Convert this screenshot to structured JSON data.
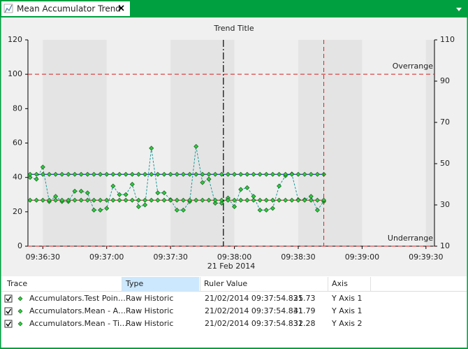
{
  "tab": {
    "title": "Mean Accumulator Trend"
  },
  "chart_data": {
    "type": "line",
    "title": "Trend Title",
    "x_axis_date": "21 Feb 2014",
    "x": [
      "09:36:24",
      "09:36:27",
      "09:36:30",
      "09:36:33",
      "09:36:36",
      "09:36:39",
      "09:36:42",
      "09:36:45",
      "09:36:48",
      "09:36:51",
      "09:36:54",
      "09:36:57",
      "09:37:00",
      "09:37:03",
      "09:37:06",
      "09:37:09",
      "09:37:12",
      "09:37:15",
      "09:37:18",
      "09:37:21",
      "09:37:24",
      "09:37:27",
      "09:37:30",
      "09:37:33",
      "09:37:36",
      "09:37:39",
      "09:37:42",
      "09:37:45",
      "09:37:48",
      "09:37:51",
      "09:37:54",
      "09:37:57",
      "09:38:00",
      "09:38:03",
      "09:38:06",
      "09:38:09",
      "09:38:12",
      "09:38:15",
      "09:38:18",
      "09:38:21",
      "09:38:24",
      "09:38:27",
      "09:38:30",
      "09:38:33",
      "09:38:36",
      "09:38:39",
      "09:38:42"
    ],
    "series": [
      {
        "name": "Accumulators.Test Poin…",
        "color": "#1b9a9a",
        "line_style": "dashed",
        "values": [
          40,
          39,
          46,
          26,
          29,
          26,
          26,
          32,
          32,
          31,
          21,
          21,
          22,
          35,
          30,
          30,
          36,
          23,
          24,
          57,
          31,
          31,
          27,
          21,
          21,
          26,
          58,
          37,
          39,
          25,
          25,
          28,
          23,
          33,
          34,
          29,
          21,
          21,
          22,
          35,
          41,
          42,
          27,
          27,
          29,
          21,
          26
        ]
      },
      {
        "name": "Accumulators.Mean - A…",
        "color": "#0000c0",
        "line_style": "solid",
        "values": [
          41.8,
          41.8,
          41.8,
          41.8,
          41.8,
          41.8,
          41.8,
          41.8,
          41.8,
          41.8,
          41.8,
          41.8,
          41.8,
          41.8,
          41.8,
          41.8,
          41.8,
          41.8,
          41.8,
          41.8,
          41.8,
          41.8,
          41.8,
          41.8,
          41.8,
          41.8,
          41.8,
          41.8,
          41.8,
          41.8,
          41.8,
          41.8,
          41.8,
          41.8,
          41.8,
          41.8,
          41.8,
          41.8,
          41.8,
          41.8,
          41.8,
          41.8,
          41.8,
          41.8,
          41.8,
          41.8,
          41.8
        ]
      },
      {
        "name": "Accumulators.Mean - Ti…",
        "color": "#a02424",
        "line_style": "solid",
        "axis": "y2",
        "values": [
          32.3,
          32.3,
          32.3,
          32.3,
          32.3,
          32.3,
          32.3,
          32.3,
          32.3,
          32.3,
          32.3,
          32.3,
          32.3,
          32.3,
          32.3,
          32.3,
          32.3,
          32.3,
          32.3,
          32.3,
          32.3,
          32.3,
          32.3,
          32.3,
          32.3,
          32.3,
          32.3,
          32.3,
          32.3,
          32.3,
          32.3,
          32.3,
          32.3,
          32.3,
          32.3,
          32.3,
          32.3,
          32.3,
          32.3,
          32.3,
          32.3,
          32.3,
          32.3,
          32.3,
          32.3,
          32.3,
          32.3
        ]
      }
    ],
    "marker_color": "#2ecc40",
    "xlim": [
      "09:36:23",
      "09:39:34"
    ],
    "xticks": [
      "09:36:30",
      "09:37:00",
      "09:37:30",
      "09:38:00",
      "09:38:30",
      "09:39:00",
      "09:39:30"
    ],
    "ylim": [
      0,
      120
    ],
    "yticks": [
      0,
      20,
      40,
      60,
      80,
      100,
      120
    ],
    "y2lim": [
      10,
      110
    ],
    "y2ticks": [
      10,
      30,
      50,
      70,
      90,
      110
    ],
    "limits": [
      {
        "text": "Overrange",
        "value": 100
      },
      {
        "text": "Underrange",
        "value": 0
      }
    ],
    "limit_color": "#d42020",
    "ruler_time": "09:37:54.831"
  },
  "table": {
    "columns": [
      "Trace",
      "Type",
      "Ruler Value",
      "Axis"
    ],
    "rows": [
      [
        "Accumulators.Test Poin…",
        "Raw Historic",
        "21/02/2014 09:37:54.831",
        "25.73",
        "Y Axis 1"
      ],
      [
        "Accumulators.Mean - A…",
        "Raw Historic",
        "21/02/2014 09:37:54.831",
        "41.79",
        "Y Axis 1"
      ],
      [
        "Accumulators.Mean - Ti…",
        "Raw Historic",
        "21/02/2014 09:37:54.831",
        "32.28",
        "Y Axis 2"
      ]
    ]
  }
}
